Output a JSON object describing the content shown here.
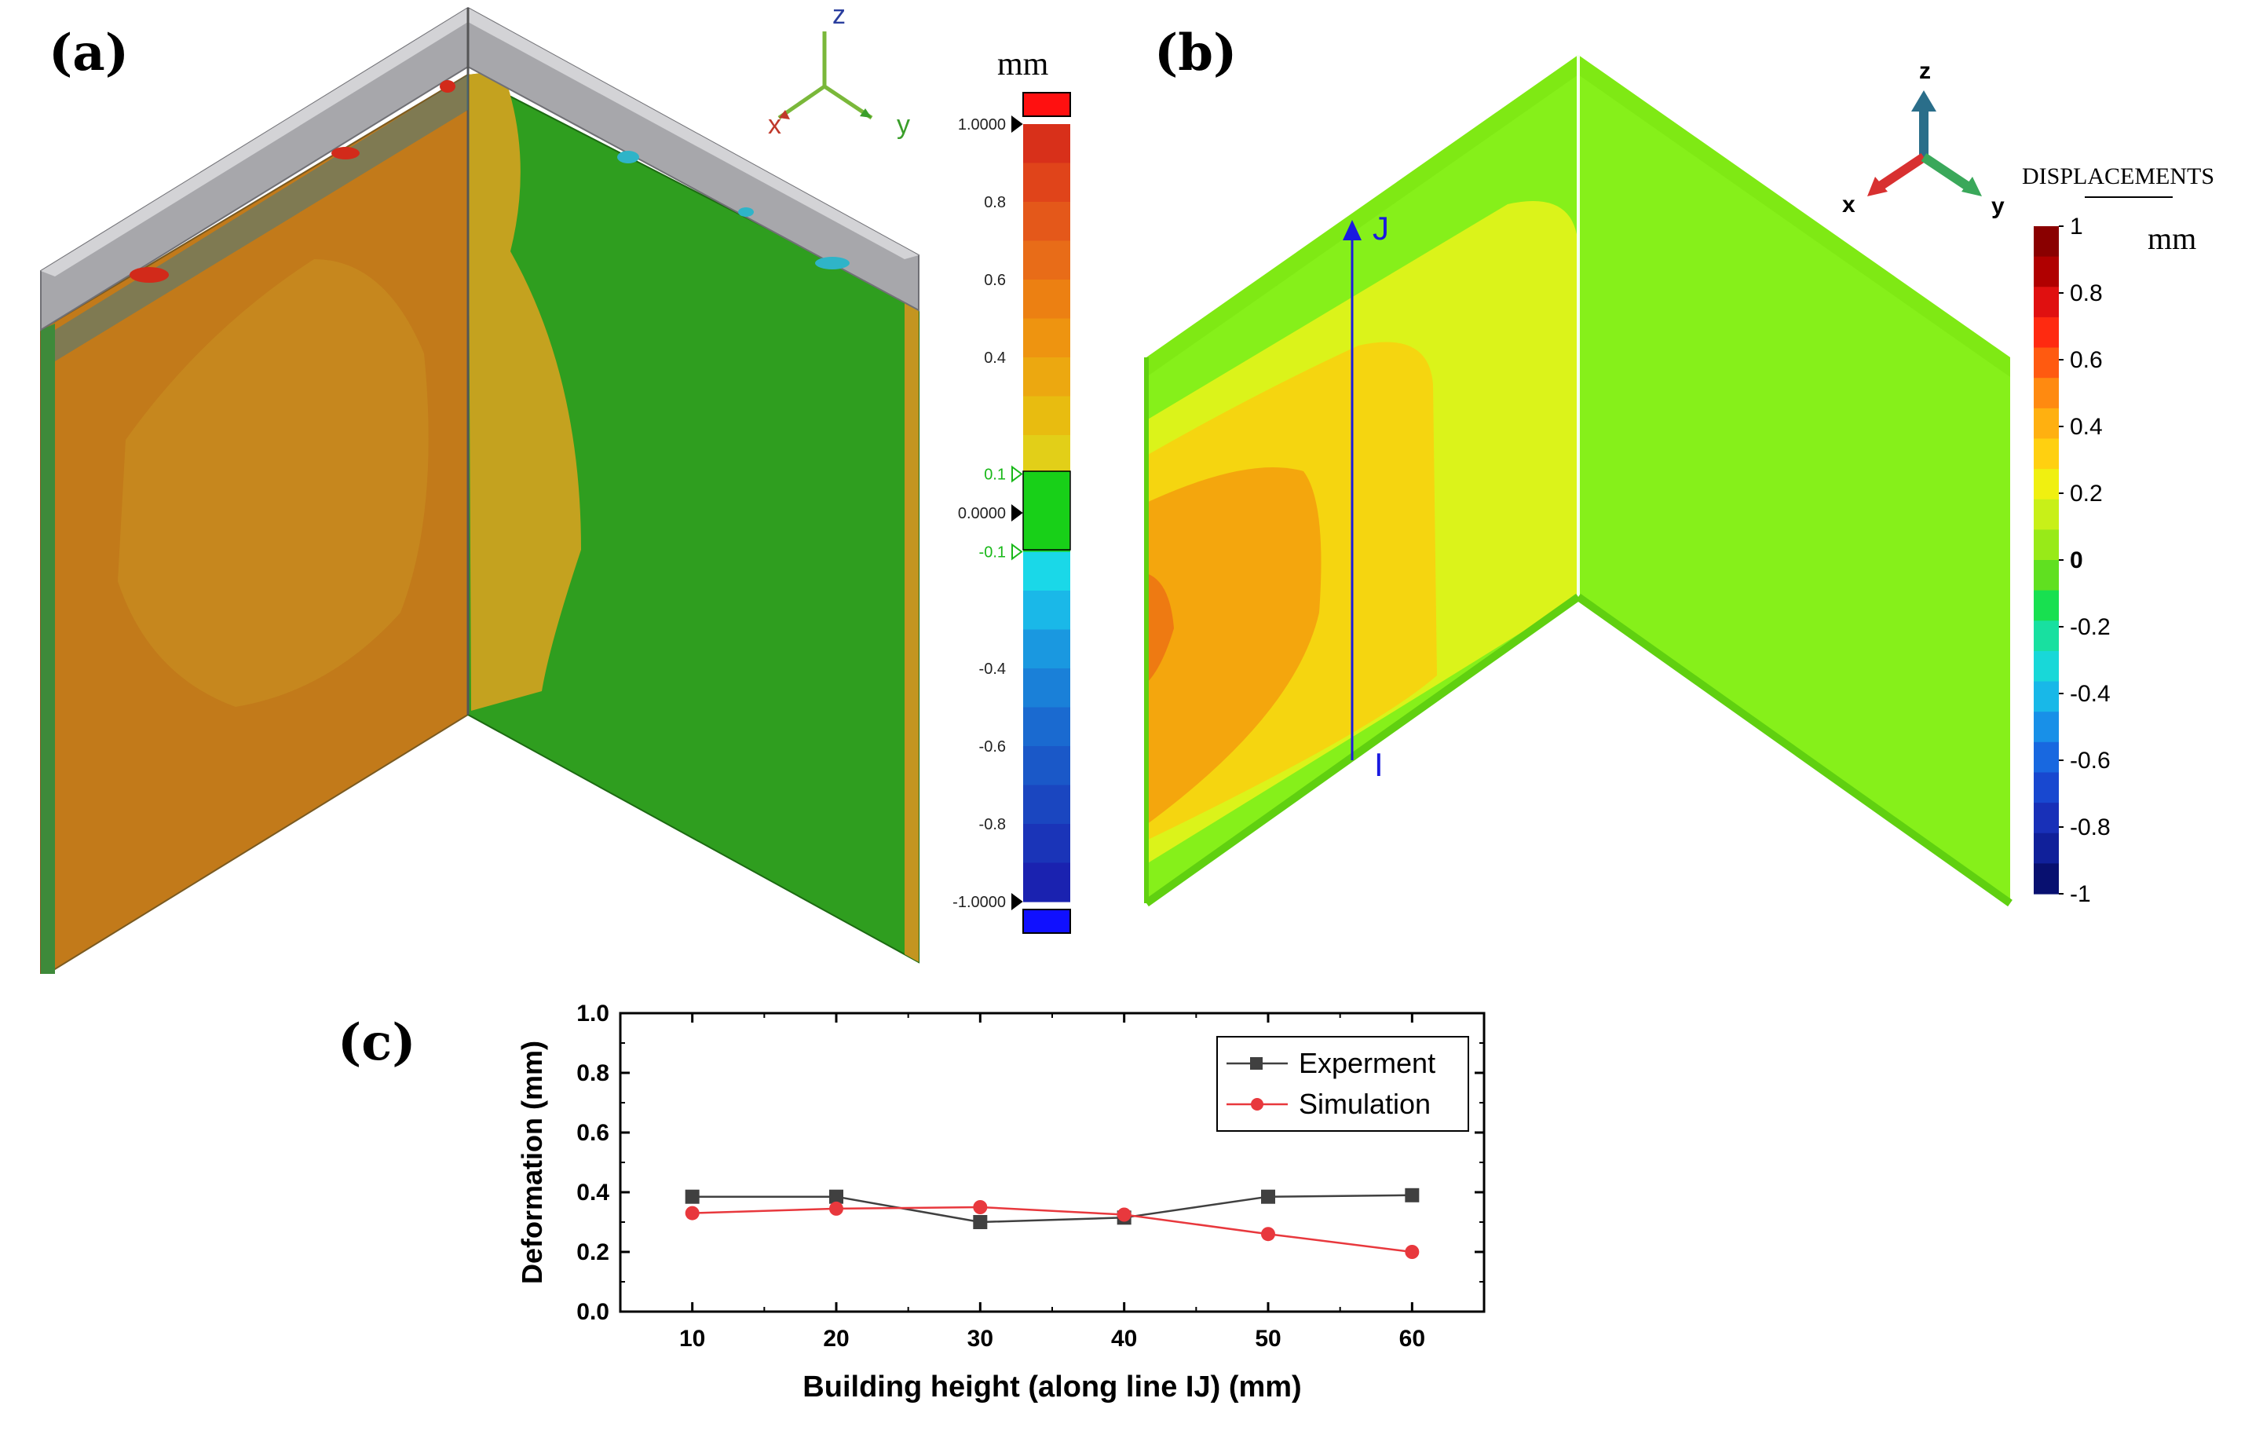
{
  "panels": {
    "a": {
      "label": "(a)",
      "axes": {
        "z": "z",
        "y": "y",
        "x": "x"
      },
      "unit": "mm",
      "colorbar_ticks": [
        "1.0000",
        "0.8",
        "0.6",
        "0.4",
        "0.1",
        "0.0000",
        "-0.1",
        "-0.4",
        "-0.6",
        "-0.8",
        "-1.0000"
      ],
      "colors": {
        "left_face": "#c07b1c",
        "right_face": "#2f9e1f",
        "cap": "#a9a9ad"
      }
    },
    "b": {
      "label": "(b)",
      "axes": {
        "z": "z",
        "x": "x",
        "y": "y"
      },
      "legend_title": "DISPLACEMENTS",
      "unit": "mm",
      "colorbar_ticks": [
        "1",
        "0.8",
        "0.6",
        "0.4",
        "0.2",
        "0",
        "-0.2",
        "-0.4",
        "-0.6",
        "-0.8",
        "-1"
      ],
      "line_labels": {
        "start": "I",
        "end": "J"
      },
      "colors": {
        "base": "#86f01a"
      }
    },
    "c": {
      "label": "(c)"
    }
  },
  "chart_data": {
    "type": "line",
    "title": "",
    "xlabel": "Building height (along line IJ) (mm)",
    "ylabel": "Deformation (mm)",
    "x": [
      10,
      20,
      30,
      40,
      50,
      60
    ],
    "x_ticks": [
      "10",
      "20",
      "30",
      "40",
      "50",
      "60"
    ],
    "y_ticks": [
      "0.0",
      "0.2",
      "0.4",
      "0.6",
      "0.8",
      "1.0"
    ],
    "xlim": [
      5,
      65
    ],
    "ylim": [
      0,
      1.0
    ],
    "legend_position": "top-right",
    "series": [
      {
        "name": "Experment",
        "values": [
          0.385,
          0.385,
          0.3,
          0.315,
          0.385,
          0.39
        ],
        "color": "#404040",
        "marker": "square"
      },
      {
        "name": "Simulation",
        "values": [
          0.33,
          0.345,
          0.35,
          0.325,
          0.26,
          0.2
        ],
        "color": "#e8383d",
        "marker": "circle"
      }
    ]
  }
}
